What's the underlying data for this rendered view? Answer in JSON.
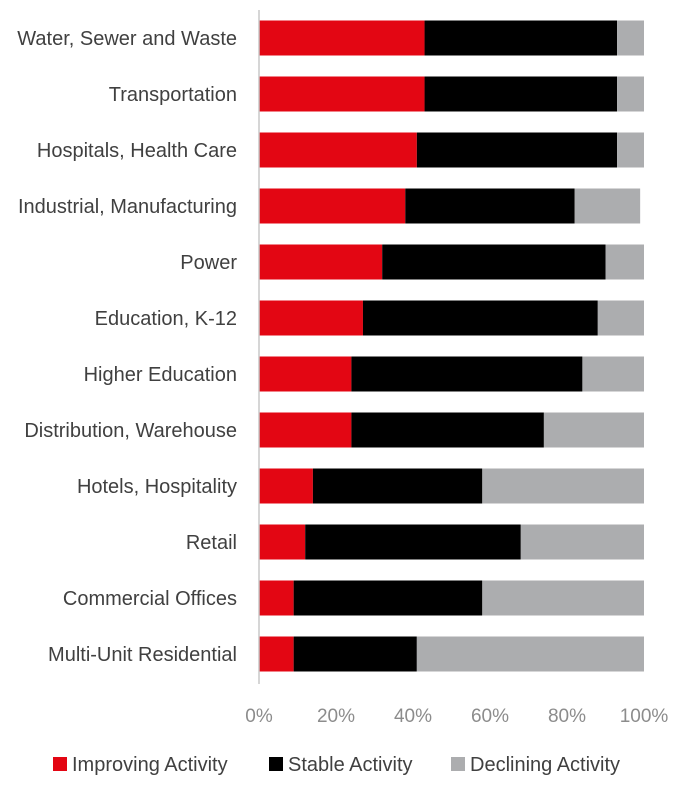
{
  "chart_data": {
    "type": "bar",
    "orientation": "horizontal",
    "stacked": true,
    "title": "",
    "xlabel": "",
    "ylabel": "",
    "xlim": [
      0,
      100
    ],
    "grid": false,
    "legend_position": "bottom",
    "tick_labels": [
      "0%",
      "20%",
      "40%",
      "60%",
      "80%",
      "100%"
    ],
    "categories": [
      "Water, Sewer and Waste",
      "Transportation",
      "Hospitals, Health Care",
      "Industrial, Manufacturing",
      "Power",
      "Education, K-12",
      "Higher Education",
      "Distribution, Warehouse",
      "Hotels, Hospitality",
      "Retail",
      "Commercial Offices",
      "Multi-Unit Residential"
    ],
    "series": [
      {
        "name": "Improving Activity",
        "color": "#e30613",
        "values": [
          43,
          43,
          41,
          38,
          32,
          27,
          24,
          24,
          14,
          12,
          9,
          9
        ]
      },
      {
        "name": "Stable Activity",
        "color": "#000000",
        "values": [
          50,
          50,
          52,
          44,
          58,
          61,
          60,
          50,
          44,
          56,
          49,
          32
        ]
      },
      {
        "name": "Declining Activity",
        "color": "#acadaf",
        "values": [
          7,
          7,
          7,
          17,
          10,
          12,
          16,
          26,
          42,
          32,
          42,
          59
        ]
      }
    ]
  }
}
